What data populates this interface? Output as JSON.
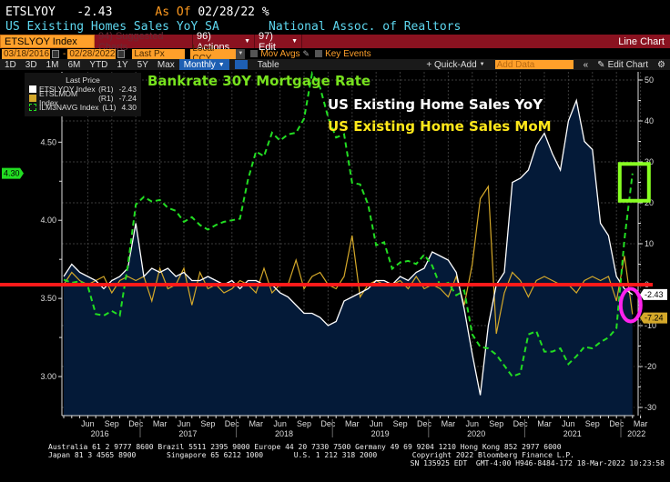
{
  "header": {
    "ticker": "ETSLYOY",
    "last_value": "-2.43",
    "as_of_label": "As Of",
    "as_of_date": "02/28/22",
    "percent_sign": "%",
    "description": "US Existing Homes Sales YoY SA",
    "source": "National Assoc. of Realtors"
  },
  "toolbar": {
    "security": "ETSLYOY Index",
    "suggested": "94) Suggested Charts",
    "actions": "96) Actions",
    "edit": "97) Edit",
    "chart_type": "Line Chart",
    "start_date": "03/18/2016",
    "end_date": "02/28/2022",
    "date_sep": "-",
    "price_field": "Last Px",
    "currency": "Local CCY",
    "mov_avgs": "Mov Avgs",
    "key_events": "Key Events",
    "periods": [
      "1D",
      "3D",
      "1M",
      "6M",
      "YTD",
      "1Y",
      "5Y",
      "Max"
    ],
    "frequency": "Monthly",
    "table": "Table",
    "quick_add": "+ Quick-Add",
    "add_data_placeholder": "Add Data",
    "collapse": "«",
    "edit_chart": "Edit Chart",
    "colors": {
      "accent_bar": "#8a1220",
      "orange": "#ffa02a"
    }
  },
  "legend": {
    "title": "Last Price",
    "items": [
      {
        "name": "ETSLYOY Index",
        "axis": "(R1)",
        "value": "-2.43",
        "color": "#ffffff"
      },
      {
        "name": "ETSLMOM Index",
        "axis": "(R1)",
        "value": "-7.24",
        "color": "#d4a82a"
      },
      {
        "name": "ILM3NAVG Index",
        "axis": "(L1)",
        "value": "4.30",
        "color": "#22dd22"
      }
    ]
  },
  "annotations": {
    "mortgage": "Bankrate 30Y Mortgage Rate",
    "yoy": "US Existing Home Sales YoY",
    "mom": "US Existing Home Sales MoM"
  },
  "chart_data": {
    "type": "line",
    "title": "",
    "x_start": "2016-03",
    "x_end": "2022-02",
    "frequency": "monthly",
    "left_axis": {
      "ticks": [
        "3.00",
        "3.50",
        "4.00",
        "4.50"
      ],
      "ylim": [
        2.75,
        4.95
      ],
      "last_label": "4.30"
    },
    "right_axis": {
      "ticks": [
        "-30",
        "-20",
        "-10",
        "0",
        "10",
        "20",
        "30",
        "40",
        "50"
      ],
      "ylim": [
        -32,
        52
      ],
      "last_labels": [
        "-2.43",
        "-7.24"
      ]
    },
    "x_ticks": [
      "Jun",
      "Sep",
      "Dec",
      "Mar",
      "Jun",
      "Sep",
      "Dec",
      "Mar",
      "Jun",
      "Sep",
      "Dec",
      "Mar",
      "Jun",
      "Sep",
      "Dec",
      "Mar",
      "Jun",
      "Sep",
      "Dec",
      "Mar",
      "Jun",
      "Sep",
      "Dec",
      "Mar"
    ],
    "x_years": [
      "2016",
      "2017",
      "2018",
      "2019",
      "2020",
      "2021",
      "2022"
    ],
    "reference_line": {
      "axis": "right",
      "value": 0,
      "color": "#ff1a1a"
    },
    "highlights": [
      {
        "shape": "rectangle",
        "series": "ILM3NAVG Index",
        "color": "#88ff22"
      },
      {
        "shape": "ellipse",
        "series": "ETSLYOY/ETSLMOM",
        "color": "#ff22ee"
      }
    ],
    "series": [
      {
        "name": "ETSLYOY Index",
        "axis": "right",
        "style": "area",
        "color": "#ffffff",
        "values": [
          2,
          5,
          3,
          2,
          1,
          -1,
          1,
          2,
          4,
          15,
          2,
          4,
          3,
          4,
          2,
          3,
          1,
          1,
          2,
          1,
          0,
          1,
          -1,
          1,
          1,
          0,
          0,
          -2,
          -3,
          -5,
          -7,
          -7,
          -8,
          -10,
          -9,
          -4,
          -3,
          -2,
          -1,
          1,
          1,
          0,
          2,
          1,
          3,
          4,
          8,
          7,
          6,
          3,
          -6,
          -17,
          -27,
          -10,
          0,
          3,
          25,
          26,
          28,
          34,
          37,
          32,
          28,
          40,
          45,
          35,
          33,
          15,
          12,
          2,
          -1,
          -2.43
        ]
      },
      {
        "name": "ETSLMOM Index",
        "axis": "right",
        "style": "line",
        "color": "#d4a82a",
        "values": [
          0,
          3,
          1,
          0,
          1,
          2,
          -2,
          1,
          2,
          1,
          2,
          -4,
          4,
          -1,
          0,
          4,
          -5,
          3,
          -1,
          0,
          -2,
          -1,
          1,
          0,
          -2,
          4,
          -2,
          0,
          0,
          6,
          -1,
          2,
          3,
          0,
          -1,
          2,
          12,
          -3,
          0,
          1,
          0,
          0,
          1,
          -1,
          2,
          -1,
          0,
          -1,
          -3,
          2,
          -5,
          5,
          21,
          24,
          -12,
          -2,
          3,
          1,
          -3,
          1,
          2,
          1,
          0,
          0,
          -2,
          1,
          2,
          1,
          2,
          -4,
          7,
          -7.24
        ]
      },
      {
        "name": "ILM3NAVG Index",
        "axis": "left",
        "style": "dashed",
        "color": "#22dd22",
        "values": [
          3.62,
          3.6,
          3.61,
          3.58,
          3.4,
          3.39,
          3.42,
          3.39,
          3.71,
          4.1,
          4.15,
          4.12,
          4.13,
          4.08,
          4.06,
          3.99,
          4.02,
          3.97,
          3.94,
          3.97,
          3.99,
          4.0,
          4.01,
          4.26,
          4.44,
          4.41,
          4.56,
          4.51,
          4.55,
          4.56,
          4.65,
          4.94,
          4.85,
          4.66,
          4.53,
          4.55,
          4.24,
          4.23,
          4.1,
          3.84,
          3.86,
          3.69,
          3.73,
          3.74,
          3.72,
          3.78,
          3.71,
          3.58,
          3.6,
          3.52,
          3.55,
          3.27,
          3.19,
          3.18,
          3.14,
          3.07,
          3.0,
          3.02,
          3.27,
          3.29,
          3.16,
          3.16,
          3.18,
          3.08,
          3.13,
          3.19,
          3.18,
          3.22,
          3.25,
          3.31,
          3.88,
          4.3
        ]
      }
    ]
  },
  "footer": {
    "line1": "Australia 61 2 9777 8600 Brazil 5511 2395 9000 Europe 44 20 7330 7500 Germany 49 69 9204 1210 Hong Kong 852 2977 6000",
    "line2": "Japan 81 3 4565 8900       Singapore 65 6212 1000       U.S. 1 212 318 2000        Copyright 2022 Bloomberg Finance L.P.",
    "line3": "SN 135925 EDT  GMT-4:00 H946-8484-172 18-Mar-2022 10:23:58"
  }
}
